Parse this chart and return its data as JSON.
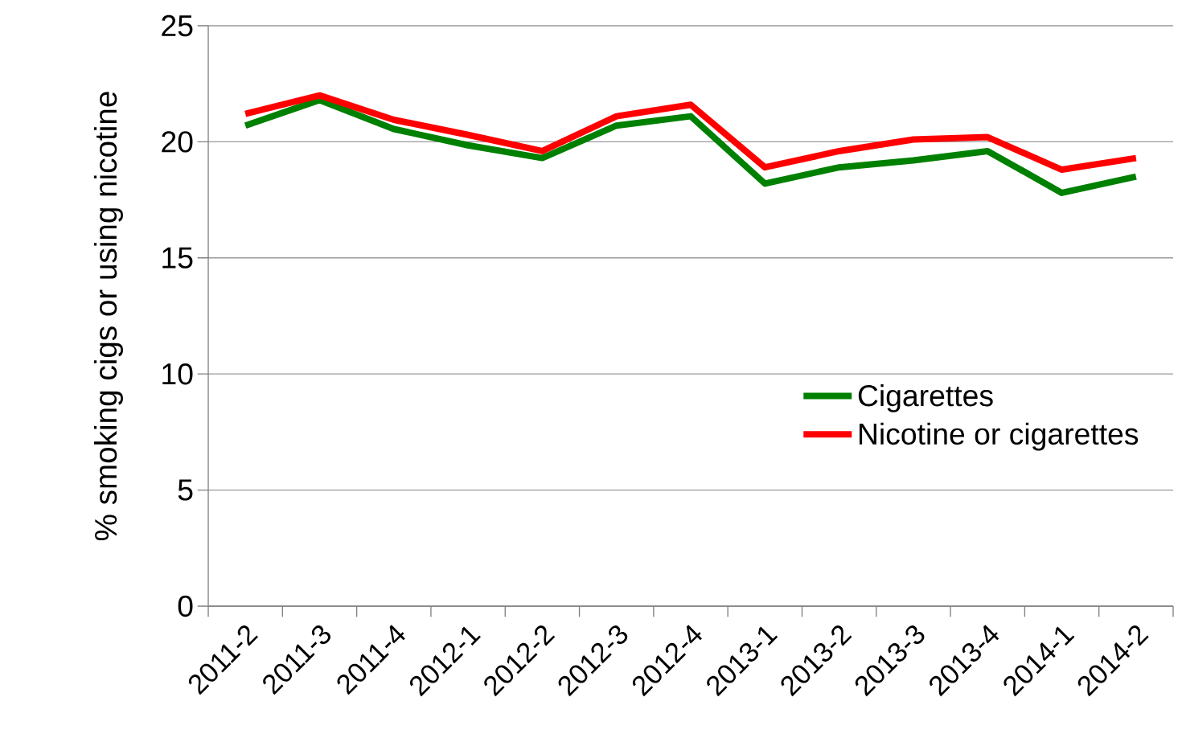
{
  "chart_data": {
    "type": "line",
    "ylabel": "% smoking cigs or using nicotine",
    "categories": [
      "2011-2",
      "2011-3",
      "2011-4",
      "2012-1",
      "2012-2",
      "2012-3",
      "2012-4",
      "2013-1",
      "2013-2",
      "2013-3",
      "2013-4",
      "2014-1",
      "2014-2"
    ],
    "series": [
      {
        "name": "Cigarettes",
        "color": "#008000",
        "values": [
          20.7,
          21.8,
          20.55,
          19.85,
          19.3,
          20.7,
          21.1,
          18.2,
          18.9,
          19.2,
          19.6,
          17.8,
          18.5
        ]
      },
      {
        "name": "Nicotine or cigarettes",
        "color": "#ff0000",
        "values": [
          21.2,
          22.0,
          20.95,
          20.3,
          19.6,
          21.1,
          21.6,
          18.9,
          19.6,
          20.1,
          20.2,
          18.8,
          19.3
        ]
      }
    ],
    "ylim": [
      0,
      25
    ],
    "yticks": [
      0,
      5,
      10,
      15,
      20,
      25
    ],
    "grid": "y",
    "legend": "right",
    "marker": "none",
    "line_style": "solid"
  }
}
